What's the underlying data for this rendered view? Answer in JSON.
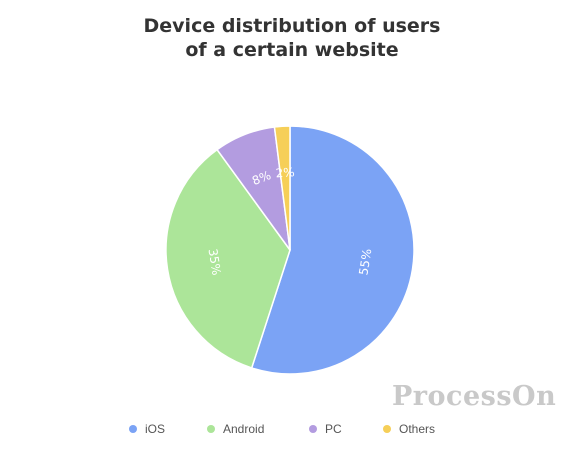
{
  "chart_data": {
    "type": "pie",
    "title_lines": [
      "Device distribution of users",
      "of a certain website"
    ],
    "categories": [
      "iOS",
      "Android",
      "PC",
      "Others"
    ],
    "values": [
      55,
      35,
      8,
      2
    ],
    "labels": [
      "55%",
      "35%",
      "8%",
      "2%"
    ],
    "colors": [
      "#7ba3f5",
      "#ace599",
      "#b39ce0",
      "#f6cf58"
    ],
    "legend_position": "bottom",
    "start_angle": "12 o'clock, clockwise"
  },
  "watermark": "ProcessOn"
}
